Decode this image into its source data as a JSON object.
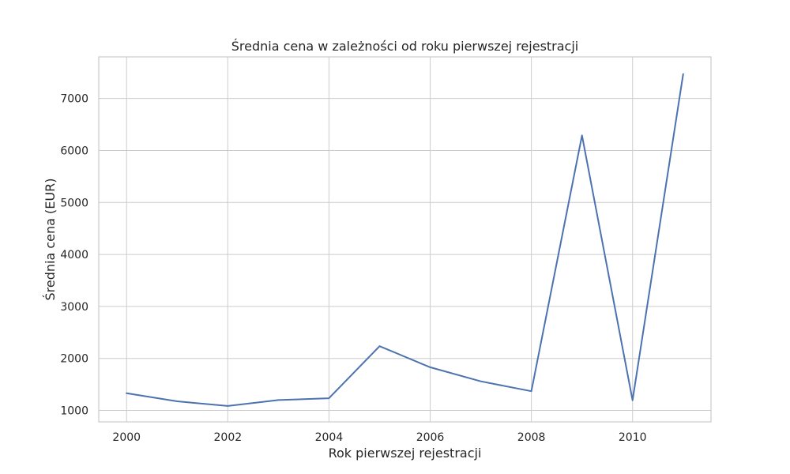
{
  "chart_data": {
    "type": "line",
    "title": "Średnia cena w zależności od roku pierwszej rejestracji",
    "xlabel": "Rok pierwszej rejestracji",
    "ylabel": "Średnia cena (EUR)",
    "x": [
      2000,
      2001,
      2002,
      2003,
      2004,
      2005,
      2006,
      2007,
      2008,
      2009,
      2010,
      2011
    ],
    "values": [
      1330,
      1175,
      1085,
      1200,
      1235,
      2235,
      1830,
      1560,
      1370,
      6290,
      1195,
      7470
    ],
    "xticks": [
      2000,
      2002,
      2004,
      2006,
      2008,
      2010
    ],
    "xtick_labels": [
      "2000",
      "2002",
      "2004",
      "2006",
      "2008",
      "2010"
    ],
    "yticks": [
      1000,
      2000,
      3000,
      4000,
      5000,
      6000,
      7000
    ],
    "ytick_labels": [
      "1000",
      "2000",
      "3000",
      "4000",
      "5000",
      "6000",
      "7000"
    ],
    "xlim": [
      1999.45,
      2011.55
    ],
    "ylim": [
      780,
      7800
    ],
    "grid": true,
    "line_color": "#4c72b0"
  }
}
